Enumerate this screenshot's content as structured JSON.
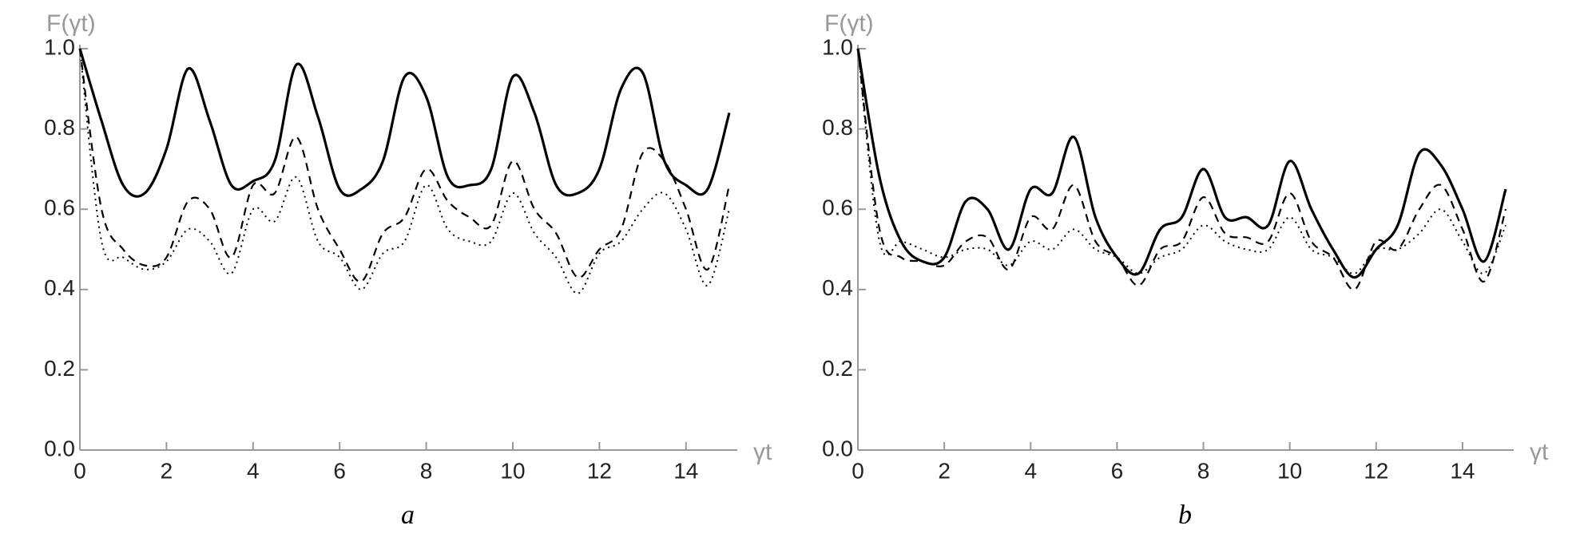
{
  "chart_data": [
    {
      "type": "line",
      "y_label": "F(γt)",
      "x_label": "γt",
      "caption": "a",
      "x": [
        0,
        0.5,
        1,
        1.5,
        2,
        2.5,
        3,
        3.5,
        4,
        4.5,
        5,
        5.5,
        6,
        6.5,
        7,
        7.5,
        8,
        8.5,
        9,
        9.5,
        10,
        10.5,
        11,
        11.5,
        12,
        12.5,
        13,
        13.5,
        14,
        14.5,
        15
      ],
      "series": [
        {
          "color": "#000000",
          "dash": "solid",
          "values": [
            1.0,
            0.82,
            0.66,
            0.64,
            0.75,
            0.95,
            0.82,
            0.66,
            0.67,
            0.72,
            0.96,
            0.83,
            0.65,
            0.65,
            0.72,
            0.93,
            0.88,
            0.68,
            0.66,
            0.7,
            0.93,
            0.84,
            0.66,
            0.64,
            0.7,
            0.9,
            0.94,
            0.72,
            0.66,
            0.65,
            0.84
          ]
        },
        {
          "color": "#000000",
          "dash": "dashed",
          "values": [
            1.0,
            0.6,
            0.5,
            0.46,
            0.48,
            0.62,
            0.6,
            0.48,
            0.66,
            0.64,
            0.78,
            0.6,
            0.5,
            0.42,
            0.54,
            0.58,
            0.7,
            0.62,
            0.58,
            0.56,
            0.72,
            0.6,
            0.54,
            0.43,
            0.5,
            0.55,
            0.74,
            0.72,
            0.6,
            0.45,
            0.66
          ]
        },
        {
          "color": "#000000",
          "dash": "dotted",
          "values": [
            1.0,
            0.52,
            0.48,
            0.45,
            0.47,
            0.55,
            0.52,
            0.44,
            0.6,
            0.57,
            0.68,
            0.52,
            0.48,
            0.4,
            0.49,
            0.52,
            0.66,
            0.55,
            0.52,
            0.52,
            0.64,
            0.54,
            0.48,
            0.39,
            0.49,
            0.52,
            0.6,
            0.64,
            0.55,
            0.41,
            0.6
          ]
        }
      ],
      "xlim": [
        0,
        15
      ],
      "xticks": [
        0,
        2,
        4,
        6,
        8,
        10,
        12,
        14
      ],
      "ylim": [
        0,
        1
      ],
      "yticks": [
        {
          "value": 0,
          "label": "0.0"
        },
        0.2,
        0.4,
        0.6,
        0.8,
        {
          "value": 1,
          "label": "1.0"
        }
      ]
    },
    {
      "type": "line",
      "y_label": "F(γt)",
      "x_label": "γt",
      "caption": "b",
      "x": [
        0,
        0.5,
        1,
        1.5,
        2,
        2.5,
        3,
        3.5,
        4,
        4.5,
        5,
        5.5,
        6,
        6.5,
        7,
        7.5,
        8,
        8.5,
        9,
        9.5,
        10,
        10.5,
        11,
        11.5,
        12,
        12.5,
        13,
        13.5,
        14,
        14.5,
        15
      ],
      "series": [
        {
          "color": "#000000",
          "dash": "solid",
          "values": [
            1.0,
            0.68,
            0.52,
            0.47,
            0.48,
            0.62,
            0.6,
            0.5,
            0.65,
            0.64,
            0.78,
            0.58,
            0.48,
            0.44,
            0.55,
            0.58,
            0.7,
            0.58,
            0.58,
            0.56,
            0.72,
            0.6,
            0.5,
            0.43,
            0.5,
            0.56,
            0.74,
            0.71,
            0.6,
            0.47,
            0.65
          ]
        },
        {
          "color": "#000000",
          "dash": "dashed",
          "values": [
            1.0,
            0.55,
            0.48,
            0.47,
            0.46,
            0.52,
            0.53,
            0.45,
            0.58,
            0.55,
            0.66,
            0.52,
            0.48,
            0.41,
            0.5,
            0.52,
            0.63,
            0.54,
            0.53,
            0.52,
            0.64,
            0.52,
            0.48,
            0.4,
            0.52,
            0.5,
            0.6,
            0.66,
            0.55,
            0.42,
            0.6
          ]
        },
        {
          "color": "#000000",
          "dash": "dotted",
          "values": [
            1.0,
            0.52,
            0.52,
            0.5,
            0.48,
            0.5,
            0.5,
            0.46,
            0.52,
            0.5,
            0.55,
            0.5,
            0.48,
            0.44,
            0.48,
            0.5,
            0.56,
            0.52,
            0.5,
            0.5,
            0.58,
            0.5,
            0.48,
            0.44,
            0.5,
            0.5,
            0.54,
            0.6,
            0.52,
            0.44,
            0.56
          ]
        }
      ],
      "xlim": [
        0,
        15
      ],
      "xticks": [
        0,
        2,
        4,
        6,
        8,
        10,
        12,
        14
      ],
      "ylim": [
        0,
        1
      ],
      "yticks": [
        {
          "value": 0,
          "label": "0.0"
        },
        0.2,
        0.4,
        0.6,
        0.8,
        {
          "value": 1,
          "label": "1.0"
        }
      ]
    }
  ]
}
